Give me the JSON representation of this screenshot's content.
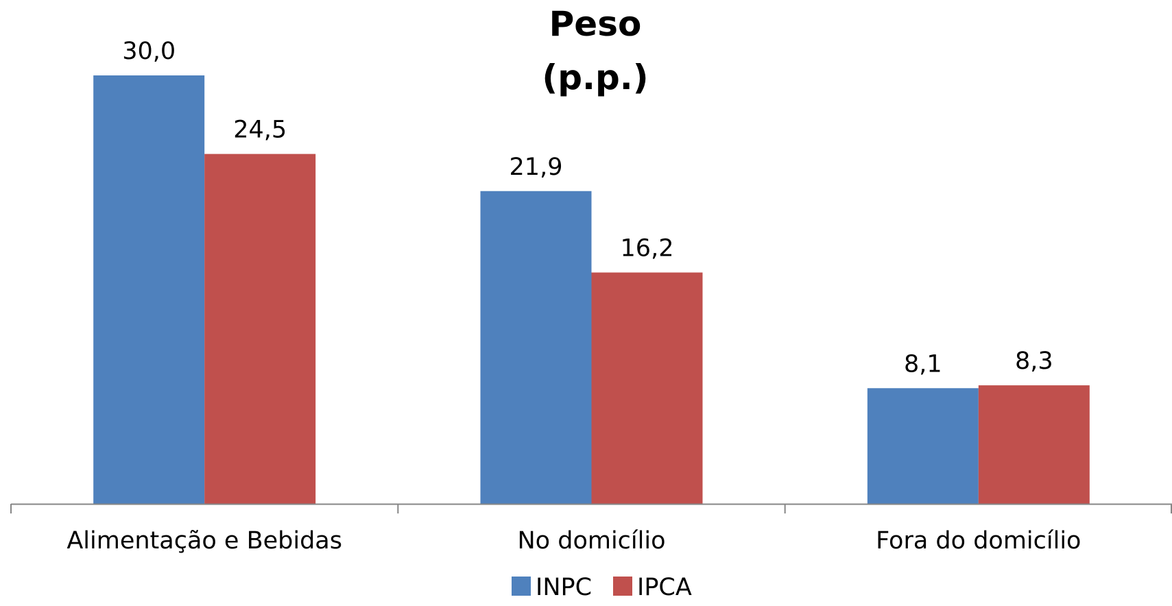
{
  "chart_data": {
    "type": "bar",
    "title": [
      "Peso",
      "(p.p.)"
    ],
    "categories": [
      "Alimentação e Bebidas",
      "No domicílio",
      "Fora do domicílio"
    ],
    "series": [
      {
        "name": "INPC",
        "color": "#4F81BD",
        "values": [
          30.0,
          21.9,
          8.1
        ],
        "labels": [
          "30,0",
          "21,9",
          "8,1"
        ]
      },
      {
        "name": "IPCA",
        "color": "#C0504D",
        "values": [
          24.5,
          16.2,
          8.3
        ],
        "labels": [
          "24,5",
          "16,2",
          "8,3"
        ]
      }
    ],
    "ylim": [
      0,
      30
    ],
    "grid": false,
    "legend": "bottom",
    "axis_color": "#868686"
  }
}
